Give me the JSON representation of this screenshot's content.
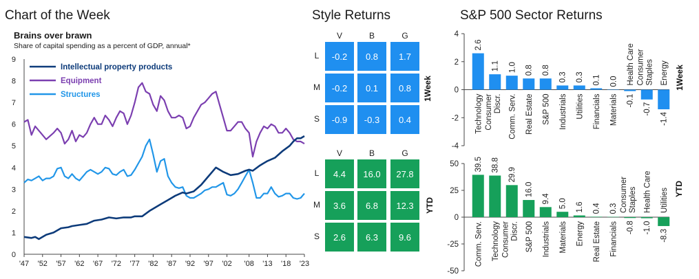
{
  "headings": {
    "chart_of_week": "Chart of the Week",
    "style_returns": "Style Returns",
    "sector_returns": "S&P 500 Sector Returns"
  },
  "colors": {
    "ip": "#0d3b7a",
    "equipment": "#7b3fb0",
    "structures": "#2196e8",
    "blue_cell": "#1f8ff0",
    "green_cell": "#16a05a",
    "bar_blue": "#1f8ff0",
    "bar_green": "#16a05a"
  },
  "style_returns": {
    "columns": [
      "V",
      "B",
      "G"
    ],
    "rows": [
      "L",
      "M",
      "S"
    ],
    "week_label": "1Week",
    "ytd_label": "YTD",
    "week": [
      [
        "-0.2",
        "0.8",
        "1.7"
      ],
      [
        "-0.2",
        "0.1",
        "0.8"
      ],
      [
        "-0.9",
        "-0.3",
        "0.4"
      ]
    ],
    "ytd": [
      [
        "4.4",
        "16.0",
        "27.8"
      ],
      [
        "3.6",
        "6.8",
        "12.3"
      ],
      [
        "2.6",
        "6.3",
        "9.6"
      ]
    ]
  },
  "chart_data": [
    {
      "type": "line",
      "title": "Brains over brawn",
      "subtitle": "Share of capital spending as a percent of GDP, annual*",
      "xlabel": "",
      "ylabel": "",
      "x_ticks": [
        "'47",
        "'52",
        "'57",
        "'62",
        "'67",
        "'72",
        "'77",
        "'82",
        "'87",
        "'92",
        "'97",
        "'02",
        "'08",
        "'13",
        "'18",
        "'23"
      ],
      "x_tick_years": [
        1947,
        1952,
        1957,
        1962,
        1967,
        1972,
        1977,
        1982,
        1987,
        1992,
        1997,
        2002,
        2008,
        2013,
        2018,
        2023
      ],
      "xlim": [
        1947,
        2023
      ],
      "ylim": [
        0,
        9
      ],
      "y_ticks": [
        0,
        1,
        2,
        3,
        4,
        5,
        6,
        7,
        8,
        9
      ],
      "legend": "top-left",
      "series": [
        {
          "name": "Intellectual property products",
          "color_key": "ip",
          "points": [
            [
              1947,
              0.8
            ],
            [
              1949,
              0.75
            ],
            [
              1950,
              0.8
            ],
            [
              1951,
              0.7
            ],
            [
              1953,
              0.9
            ],
            [
              1955,
              1.0
            ],
            [
              1957,
              1.2
            ],
            [
              1959,
              1.25
            ],
            [
              1960,
              1.3
            ],
            [
              1962,
              1.35
            ],
            [
              1964,
              1.4
            ],
            [
              1966,
              1.55
            ],
            [
              1968,
              1.6
            ],
            [
              1970,
              1.7
            ],
            [
              1972,
              1.65
            ],
            [
              1974,
              1.7
            ],
            [
              1976,
              1.7
            ],
            [
              1977,
              1.75
            ],
            [
              1979,
              1.75
            ],
            [
              1981,
              2.0
            ],
            [
              1982,
              2.1
            ],
            [
              1984,
              2.3
            ],
            [
              1986,
              2.5
            ],
            [
              1988,
              2.7
            ],
            [
              1990,
              2.85
            ],
            [
              1991,
              2.8
            ],
            [
              1993,
              2.9
            ],
            [
              1995,
              3.2
            ],
            [
              1997,
              3.6
            ],
            [
              1999,
              4.0
            ],
            [
              2001,
              3.8
            ],
            [
              2003,
              3.65
            ],
            [
              2005,
              3.7
            ],
            [
              2007,
              3.85
            ],
            [
              2008,
              3.9
            ],
            [
              2009,
              3.85
            ],
            [
              2011,
              4.1
            ],
            [
              2013,
              4.3
            ],
            [
              2015,
              4.45
            ],
            [
              2017,
              4.75
            ],
            [
              2019,
              5.0
            ],
            [
              2020,
              5.2
            ],
            [
              2021,
              5.35
            ],
            [
              2022,
              5.35
            ],
            [
              2023,
              5.45
            ]
          ]
        },
        {
          "name": "Equipment",
          "color_key": "equipment",
          "points": [
            [
              1947,
              6.1
            ],
            [
              1948,
              6.2
            ],
            [
              1949,
              5.5
            ],
            [
              1950,
              5.9
            ],
            [
              1951,
              5.7
            ],
            [
              1953,
              5.3
            ],
            [
              1955,
              5.6
            ],
            [
              1956,
              5.8
            ],
            [
              1957,
              5.6
            ],
            [
              1958,
              5.1
            ],
            [
              1959,
              5.3
            ],
            [
              1960,
              5.7
            ],
            [
              1961,
              5.2
            ],
            [
              1962,
              5.5
            ],
            [
              1963,
              5.4
            ],
            [
              1964,
              5.6
            ],
            [
              1965,
              6.0
            ],
            [
              1966,
              6.3
            ],
            [
              1967,
              6.0
            ],
            [
              1968,
              6.0
            ],
            [
              1969,
              6.4
            ],
            [
              1970,
              6.2
            ],
            [
              1971,
              5.9
            ],
            [
              1972,
              6.3
            ],
            [
              1973,
              6.6
            ],
            [
              1974,
              6.5
            ],
            [
              1975,
              6.0
            ],
            [
              1976,
              6.4
            ],
            [
              1977,
              7.0
            ],
            [
              1978,
              7.7
            ],
            [
              1979,
              7.9
            ],
            [
              1980,
              7.5
            ],
            [
              1981,
              7.4
            ],
            [
              1982,
              6.9
            ],
            [
              1983,
              6.6
            ],
            [
              1984,
              7.3
            ],
            [
              1985,
              7.1
            ],
            [
              1986,
              6.6
            ],
            [
              1987,
              6.3
            ],
            [
              1988,
              6.3
            ],
            [
              1989,
              6.4
            ],
            [
              1990,
              6.3
            ],
            [
              1991,
              5.8
            ],
            [
              1992,
              5.9
            ],
            [
              1993,
              6.3
            ],
            [
              1994,
              6.6
            ],
            [
              1995,
              6.9
            ],
            [
              1996,
              7.0
            ],
            [
              1997,
              7.2
            ],
            [
              1998,
              7.4
            ],
            [
              1999,
              7.5
            ],
            [
              2000,
              6.9
            ],
            [
              2001,
              6.3
            ],
            [
              2002,
              5.7
            ],
            [
              2003,
              5.7
            ],
            [
              2004,
              5.9
            ],
            [
              2005,
              6.1
            ],
            [
              2006,
              6.1
            ],
            [
              2007,
              5.8
            ],
            [
              2008,
              5.6
            ],
            [
              2009,
              4.5
            ],
            [
              2010,
              5.2
            ],
            [
              2011,
              5.6
            ],
            [
              2012,
              5.9
            ],
            [
              2013,
              5.8
            ],
            [
              2014,
              6.0
            ],
            [
              2015,
              5.9
            ],
            [
              2016,
              5.6
            ],
            [
              2017,
              5.6
            ],
            [
              2018,
              5.8
            ],
            [
              2019,
              5.6
            ],
            [
              2020,
              5.3
            ],
            [
              2021,
              5.2
            ],
            [
              2022,
              5.2
            ],
            [
              2023,
              5.1
            ]
          ]
        },
        {
          "name": "Structures",
          "color_key": "structures",
          "points": [
            [
              1947,
              3.3
            ],
            [
              1948,
              3.45
            ],
            [
              1949,
              3.4
            ],
            [
              1950,
              3.5
            ],
            [
              1951,
              3.6
            ],
            [
              1952,
              3.4
            ],
            [
              1953,
              3.5
            ],
            [
              1954,
              3.5
            ],
            [
              1955,
              3.6
            ],
            [
              1956,
              3.95
            ],
            [
              1957,
              4.0
            ],
            [
              1958,
              3.6
            ],
            [
              1959,
              3.5
            ],
            [
              1960,
              3.7
            ],
            [
              1961,
              3.5
            ],
            [
              1962,
              3.4
            ],
            [
              1963,
              3.6
            ],
            [
              1964,
              3.8
            ],
            [
              1965,
              3.9
            ],
            [
              1966,
              3.8
            ],
            [
              1967,
              3.7
            ],
            [
              1968,
              3.8
            ],
            [
              1969,
              4.0
            ],
            [
              1970,
              3.95
            ],
            [
              1971,
              3.7
            ],
            [
              1972,
              3.65
            ],
            [
              1973,
              3.8
            ],
            [
              1974,
              3.9
            ],
            [
              1975,
              3.6
            ],
            [
              1976,
              3.65
            ],
            [
              1977,
              3.9
            ],
            [
              1978,
              4.2
            ],
            [
              1979,
              4.5
            ],
            [
              1980,
              5.0
            ],
            [
              1981,
              5.3
            ],
            [
              1982,
              4.6
            ],
            [
              1983,
              3.8
            ],
            [
              1984,
              4.3
            ],
            [
              1985,
              4.4
            ],
            [
              1986,
              3.6
            ],
            [
              1987,
              3.3
            ],
            [
              1988,
              3.1
            ],
            [
              1989,
              3.05
            ],
            [
              1990,
              3.1
            ],
            [
              1991,
              2.7
            ],
            [
              1992,
              2.6
            ],
            [
              1993,
              2.6
            ],
            [
              1994,
              2.7
            ],
            [
              1995,
              2.8
            ],
            [
              1996,
              2.95
            ],
            [
              1997,
              3.0
            ],
            [
              1998,
              3.1
            ],
            [
              1999,
              3.1
            ],
            [
              2000,
              3.2
            ],
            [
              2001,
              3.3
            ],
            [
              2002,
              2.75
            ],
            [
              2003,
              2.7
            ],
            [
              2004,
              2.8
            ],
            [
              2005,
              3.0
            ],
            [
              2006,
              3.3
            ],
            [
              2007,
              3.6
            ],
            [
              2008,
              3.9
            ],
            [
              2009,
              3.3
            ],
            [
              2010,
              2.6
            ],
            [
              2011,
              2.6
            ],
            [
              2012,
              2.8
            ],
            [
              2013,
              2.8
            ],
            [
              2014,
              3.1
            ],
            [
              2015,
              2.8
            ],
            [
              2016,
              2.65
            ],
            [
              2017,
              2.7
            ],
            [
              2018,
              2.8
            ],
            [
              2019,
              2.8
            ],
            [
              2020,
              2.6
            ],
            [
              2021,
              2.55
            ],
            [
              2022,
              2.6
            ],
            [
              2023,
              2.8
            ]
          ]
        }
      ]
    },
    {
      "type": "bar",
      "title": "S&P 500 Sector Returns",
      "subtitle": "1Week",
      "ylabel": "1Week",
      "ylim": [
        -4,
        4
      ],
      "y_ticks": [
        -4,
        -2,
        0,
        2,
        4
      ],
      "categories": [
        "Technology",
        "Consumer Discr.",
        "Comm. Serv.",
        "Real Estate",
        "S&P 500",
        "Industrials",
        "Utilities",
        "Financials",
        "Materials",
        "Health Care",
        "Consumer Staples",
        "Energy"
      ],
      "values": [
        2.6,
        1.1,
        1.0,
        0.8,
        0.8,
        0.3,
        0.3,
        0.1,
        0.0,
        -0.1,
        -0.7,
        -1.4
      ],
      "value_labels": [
        "2.6",
        "1.1",
        "1.0",
        "0.8",
        "0.8",
        "0.3",
        "0.3",
        "0.1",
        "0.0",
        "-0.1",
        "-0.7",
        "-1.4"
      ]
    },
    {
      "type": "bar",
      "title": "S&P 500 Sector Returns",
      "subtitle": "YTD",
      "ylabel": "YTD",
      "ylim": [
        -50,
        50
      ],
      "y_ticks": [
        -50,
        -25,
        0,
        25,
        50
      ],
      "categories": [
        "Comm. Serv.",
        "Technology",
        "Consumer Discr.",
        "S&P 500",
        "Industrials",
        "Materials",
        "Energy",
        "Real Estate",
        "Financials",
        "Consumer Staples",
        "Health Care",
        "Utilities"
      ],
      "values": [
        39.5,
        38.8,
        29.9,
        16.0,
        9.4,
        5.0,
        1.6,
        0.4,
        0.3,
        -0.8,
        -1.0,
        -8.3
      ],
      "value_labels": [
        "39.5",
        "38.8",
        "29.9",
        "16.0",
        "9.4",
        "5.0",
        "1.6",
        "0.4",
        "0.3",
        "-0.8",
        "-1.0",
        "-8.3"
      ]
    }
  ]
}
